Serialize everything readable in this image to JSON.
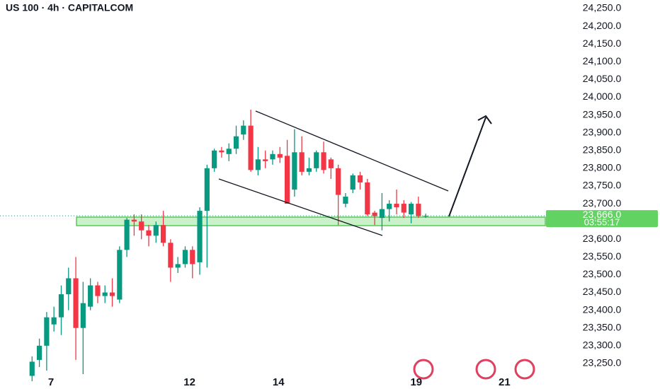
{
  "chart_data": {
    "type": "candlestick",
    "title": "US 100 · 4h · CAPITALCOM",
    "open": [
      23215,
      23260,
      23300,
      23360,
      23380,
      23445,
      23490,
      23350,
      23410,
      23470,
      23440,
      23450,
      23430,
      23570,
      23655,
      23650,
      23625,
      23610,
      23640,
      23590,
      23520,
      23530,
      23570,
      23535,
      23680,
      23800,
      23850,
      23840,
      23855,
      23895,
      23920,
      23795,
      23825,
      23825,
      23840,
      23835,
      23740,
      23845,
      23790,
      23800,
      23845,
      23825,
      23800,
      23700,
      23740,
      23780,
      23760,
      23675,
      23660,
      23685,
      23700,
      23700,
      23670,
      23700,
      23665
    ],
    "high": [
      23270,
      23320,
      23395,
      23410,
      23470,
      23520,
      23550,
      23480,
      23490,
      23480,
      23470,
      23490,
      23580,
      23660,
      23670,
      23670,
      23640,
      23650,
      23680,
      23600,
      23550,
      23580,
      23580,
      23690,
      23810,
      23855,
      23860,
      23870,
      23920,
      23935,
      23965,
      23860,
      23850,
      23850,
      23860,
      23880,
      23910,
      23890,
      23830,
      23850,
      23875,
      23830,
      23810,
      23730,
      23785,
      23790,
      23770,
      23680,
      23730,
      23710,
      23740,
      23710,
      23705,
      23720,
      23672
    ],
    "low": [
      23200,
      23240,
      23230,
      23340,
      23330,
      23400,
      23260,
      23220,
      23400,
      23420,
      23420,
      23410,
      23420,
      23550,
      23610,
      23600,
      23580,
      23590,
      23580,
      23480,
      23505,
      23520,
      23490,
      23500,
      23520,
      23790,
      23830,
      23820,
      23840,
      23880,
      23790,
      23780,
      23800,
      23810,
      23815,
      23700,
      23720,
      23780,
      23780,
      23790,
      23785,
      23770,
      23640,
      23690,
      23730,
      23740,
      23665,
      23640,
      23625,
      23650,
      23670,
      23660,
      23645,
      23660,
      23660
    ],
    "close": [
      23255,
      23300,
      23380,
      23380,
      23445,
      23490,
      23350,
      23420,
      23470,
      23440,
      23450,
      23440,
      23570,
      23655,
      23650,
      23625,
      23610,
      23640,
      23590,
      23520,
      23530,
      23570,
      23530,
      23680,
      23800,
      23850,
      23845,
      23855,
      23890,
      23920,
      23795,
      23825,
      23820,
      23840,
      23830,
      23700,
      23845,
      23790,
      23800,
      23845,
      23795,
      23800,
      23725,
      23720,
      23780,
      23760,
      23670,
      23665,
      23685,
      23700,
      23690,
      23675,
      23700,
      23665,
      23666
    ],
    "up_color": "#089981",
    "down_color": "#f23645",
    "xlim": [
      -4.4,
      70.4
    ],
    "xticks": [
      {
        "value": 2.6,
        "label": "7"
      },
      {
        "value": 21.6,
        "label": "12"
      },
      {
        "value": 33.8,
        "label": "14"
      },
      {
        "value": 52.7,
        "label": "19"
      },
      {
        "value": 64.8,
        "label": "21"
      }
    ],
    "ylim": [
      23198,
      24274
    ],
    "yticks": [
      {
        "value": 23250,
        "label": "23,250.0"
      },
      {
        "value": 23300,
        "label": "23,300.0"
      },
      {
        "value": 23350,
        "label": "23,350.0"
      },
      {
        "value": 23400,
        "label": "23,400.0"
      },
      {
        "value": 23450,
        "label": "23,450.0"
      },
      {
        "value": 23500,
        "label": "23,500.0"
      },
      {
        "value": 23550,
        "label": "23,550.0"
      },
      {
        "value": 23600,
        "label": "23,600.0"
      },
      {
        "value": 23650,
        "label": "23,650.0"
      },
      {
        "value": 23700,
        "label": "23,700.0"
      },
      {
        "value": 23750,
        "label": "23,750.0"
      },
      {
        "value": 23800,
        "label": "23,800.0"
      },
      {
        "value": 23850,
        "label": "23,850.0"
      },
      {
        "value": 23900,
        "label": "23,900.0"
      },
      {
        "value": 23950,
        "label": "23,950.0"
      },
      {
        "value": 24000,
        "label": "24,000.0"
      },
      {
        "value": 24050,
        "label": "24,050.0"
      },
      {
        "value": 24100,
        "label": "24,100.0"
      },
      {
        "value": 24150,
        "label": "24,150.0"
      },
      {
        "value": 24200,
        "label": "24,200.0"
      },
      {
        "value": 24250,
        "label": "24,250.0"
      }
    ],
    "last_price": {
      "value": 23666,
      "label": "23,666.0"
    },
    "countdown": "03:55:17"
  }
}
